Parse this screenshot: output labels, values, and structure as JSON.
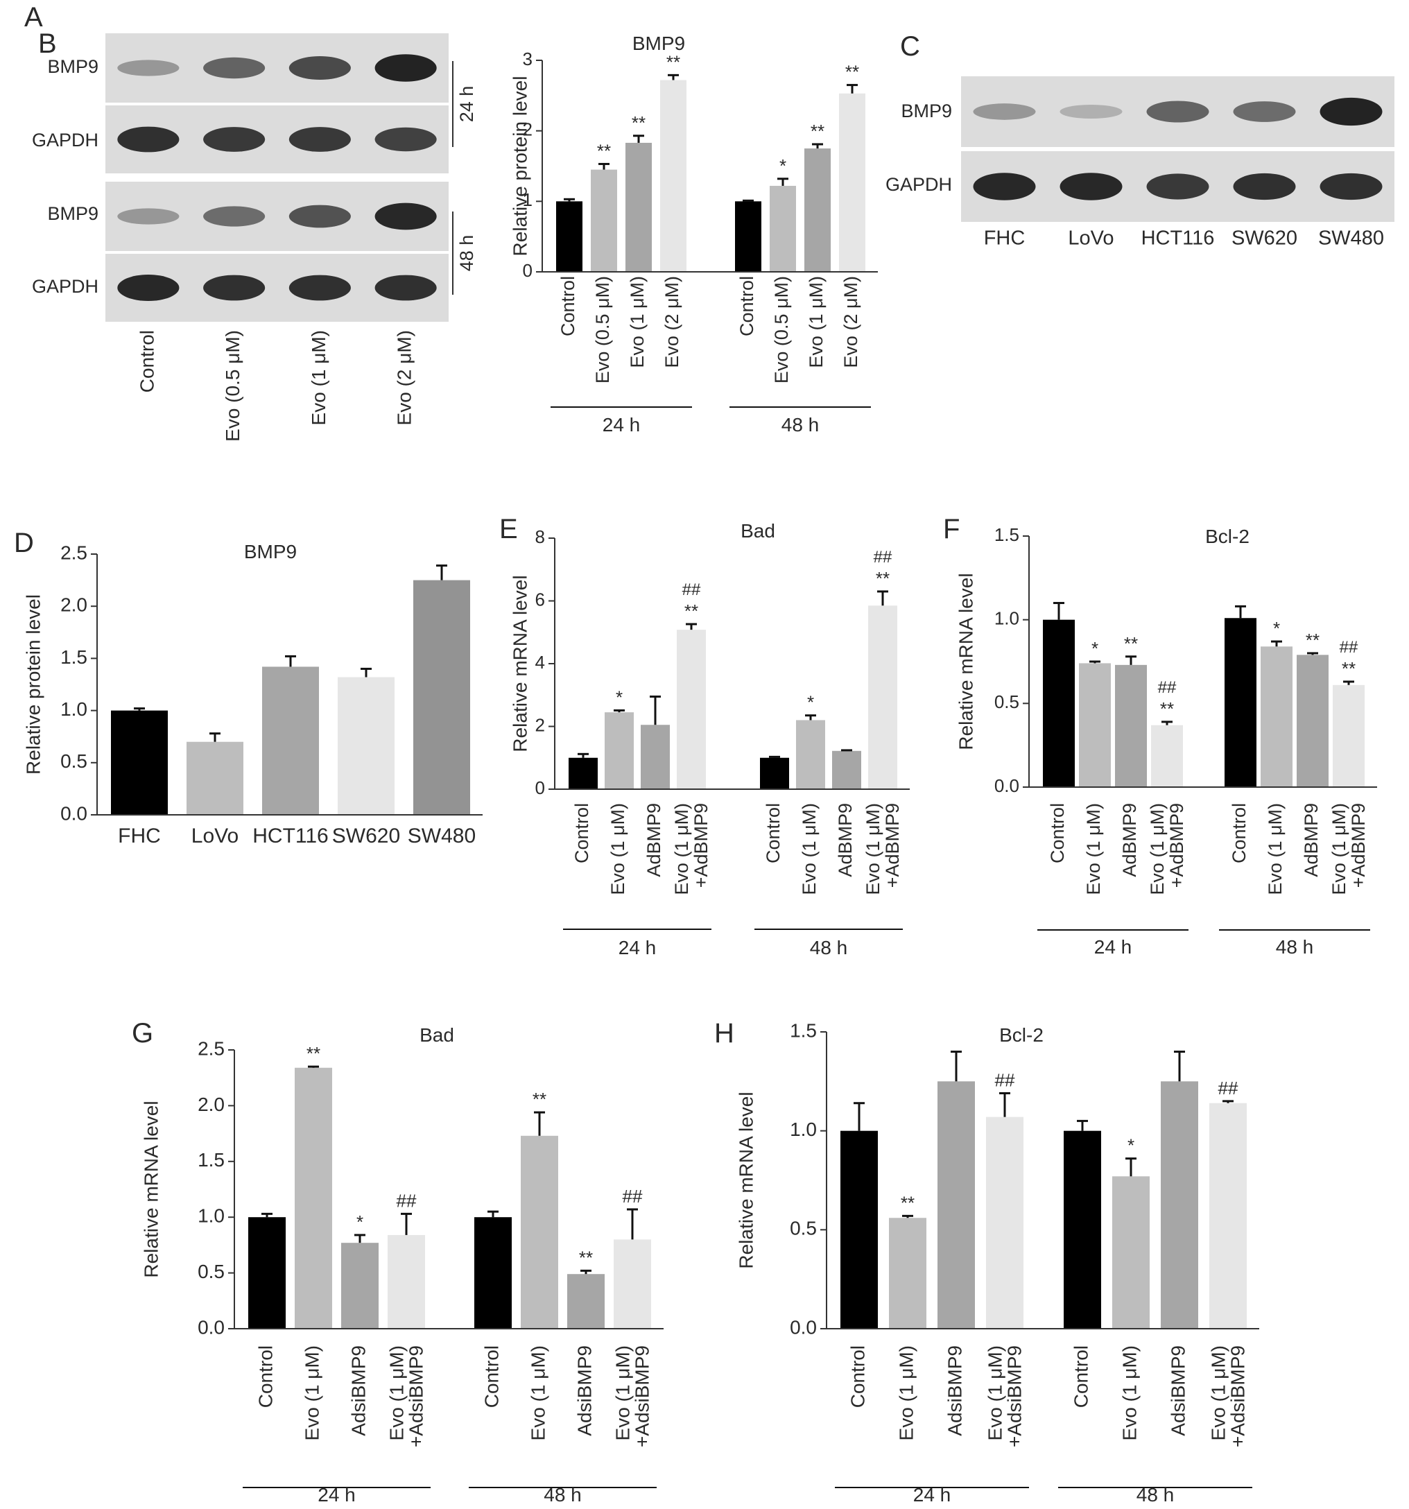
{
  "colors": {
    "black": "#000000",
    "light_gray": "#bdbdbd",
    "mid_gray": "#a6a6a6",
    "very_light": "#e6e6e6",
    "dark_gray": "#939393",
    "axis": "#333333",
    "blot_bg": "#dcdcdc"
  },
  "panelA": {
    "letter": "A",
    "rows_24h": [
      "BMP9",
      "GAPDH"
    ],
    "rows_48h": [
      "BMP9",
      "GAPDH"
    ],
    "label_24h": "24 h",
    "label_48h": "48 h",
    "lanes": [
      "Control",
      "Evo (0.5 μM)",
      "Evo (1 μM)",
      "Evo (2 μM)"
    ],
    "bmp9_24h_intensity": [
      0.3,
      0.6,
      0.75,
      0.98
    ],
    "gapdh_24h_intensity": [
      0.9,
      0.85,
      0.85,
      0.8
    ],
    "bmp9_48h_intensity": [
      0.3,
      0.55,
      0.7,
      0.95
    ],
    "gapdh_48h_intensity": [
      0.95,
      0.9,
      0.9,
      0.9
    ]
  },
  "panelC": {
    "letter": "C",
    "rows": [
      "BMP9",
      "GAPDH"
    ],
    "lanes": [
      "FHC",
      "LoVo",
      "HCT116",
      "SW620",
      "SW480"
    ],
    "bmp9_intensity": [
      0.3,
      0.15,
      0.6,
      0.55,
      0.98
    ],
    "gapdh_intensity": [
      0.95,
      0.95,
      0.85,
      0.9,
      0.9
    ]
  },
  "chart_data": [
    {
      "panel": "B",
      "type": "bar",
      "title": "BMP9",
      "ylabel": "Relative protein level",
      "ylim": [
        0,
        3
      ],
      "yticks": [
        "0",
        "1",
        "2",
        "3"
      ],
      "groups": [
        {
          "name": "24 h",
          "categories": [
            "Control",
            "Evo (0.5 μM)",
            "Evo (1 μM)",
            "Evo (2 μM)"
          ],
          "values": [
            1.0,
            1.45,
            1.83,
            2.72
          ],
          "errors": [
            0.03,
            0.08,
            0.1,
            0.07
          ],
          "annotations": [
            "",
            "**",
            "**",
            "**"
          ]
        },
        {
          "name": "48 h",
          "categories": [
            "Control",
            "Evo (0.5 μM)",
            "Evo (1 μM)",
            "Evo (2 μM)"
          ],
          "values": [
            1.0,
            1.22,
            1.75,
            2.53
          ],
          "errors": [
            0.01,
            0.1,
            0.06,
            0.12
          ],
          "annotations": [
            "",
            "*",
            "**",
            "**"
          ]
        }
      ]
    },
    {
      "panel": "D",
      "type": "bar",
      "title": "BMP9",
      "ylabel": "Relative protein level",
      "ylim": [
        0,
        2.5
      ],
      "yticks": [
        "0.0",
        "0.5",
        "1.0",
        "1.5",
        "2.0",
        "2.5"
      ],
      "groups": [
        {
          "name": "",
          "categories": [
            "FHC",
            "LoVo",
            "HCT116",
            "SW620",
            "SW480"
          ],
          "values": [
            1.0,
            0.7,
            1.42,
            1.32,
            2.25
          ],
          "errors": [
            0.02,
            0.08,
            0.1,
            0.08,
            0.14
          ],
          "annotations": [
            "",
            "",
            "",
            "",
            ""
          ]
        }
      ]
    },
    {
      "panel": "E",
      "type": "bar",
      "title": "Bad",
      "ylabel": "Relative mRNA level",
      "ylim": [
        0,
        8
      ],
      "yticks": [
        "0",
        "2",
        "4",
        "6",
        "8"
      ],
      "groups": [
        {
          "name": "24 h",
          "categories": [
            "Control",
            "Evo (1 μM)",
            "AdBMP9",
            "Evo (1 μM) +AdBMP9"
          ],
          "values": [
            1.0,
            2.45,
            2.05,
            5.08
          ],
          "errors": [
            0.12,
            0.06,
            0.9,
            0.18
          ],
          "annotations": [
            "",
            "*",
            "",
            "**"
          ],
          "annotations2": [
            "",
            "",
            "",
            "##"
          ]
        },
        {
          "name": "48 h",
          "categories": [
            "Control",
            "Evo (1 μM)",
            "AdBMP9",
            "Evo (1 μM) +AdBMP9"
          ],
          "values": [
            1.0,
            2.2,
            1.22,
            5.85
          ],
          "errors": [
            0.03,
            0.15,
            0.02,
            0.45
          ],
          "annotations": [
            "",
            "*",
            "",
            "**"
          ],
          "annotations2": [
            "",
            "",
            "",
            "##"
          ]
        }
      ]
    },
    {
      "panel": "F",
      "type": "bar",
      "title": "Bcl-2",
      "ylabel": "Relative mRNA level",
      "ylim": [
        0,
        1.5
      ],
      "yticks": [
        "0.0",
        "0.5",
        "1.0",
        "1.5"
      ],
      "groups": [
        {
          "name": "24 h",
          "categories": [
            "Control",
            "Evo (1 μM)",
            "AdBMP9",
            "Evo (1 μM) +AdBMP9"
          ],
          "values": [
            1.0,
            0.74,
            0.73,
            0.37
          ],
          "errors": [
            0.1,
            0.01,
            0.05,
            0.02
          ],
          "annotations": [
            "",
            "*",
            "**",
            "**"
          ],
          "annotations2": [
            "",
            "",
            "",
            "##"
          ]
        },
        {
          "name": "48 h",
          "categories": [
            "Control",
            "Evo (1 μM)",
            "AdBMP9",
            "Evo (1 μM) +AdBMP9"
          ],
          "values": [
            1.01,
            0.84,
            0.79,
            0.61
          ],
          "errors": [
            0.07,
            0.03,
            0.01,
            0.02
          ],
          "annotations": [
            "",
            "*",
            "**",
            "**"
          ],
          "annotations2": [
            "",
            "",
            "",
            "##"
          ]
        }
      ]
    },
    {
      "panel": "G",
      "type": "bar",
      "title": "Bad",
      "ylabel": "Relative mRNA level",
      "ylim": [
        0,
        2.5
      ],
      "yticks": [
        "0.0",
        "0.5",
        "1.0",
        "1.5",
        "2.0",
        "2.5"
      ],
      "groups": [
        {
          "name": "24 h",
          "categories": [
            "Control",
            "Evo (1 μM)",
            "AdsiBMP9",
            "Evo (1 μM) +AdsiBMP9"
          ],
          "values": [
            1.0,
            2.34,
            0.77,
            0.84
          ],
          "errors": [
            0.03,
            0.01,
            0.07,
            0.19
          ],
          "annotations": [
            "",
            "**",
            "*",
            "##"
          ]
        },
        {
          "name": "48 h",
          "categories": [
            "Control",
            "Evo (1 μM)",
            "AdsiBMP9",
            "Evo (1 μM) +AdsiBMP9"
          ],
          "values": [
            1.0,
            1.73,
            0.49,
            0.8
          ],
          "errors": [
            0.05,
            0.21,
            0.03,
            0.27
          ],
          "annotations": [
            "",
            "**",
            "**",
            "##"
          ]
        }
      ]
    },
    {
      "panel": "H",
      "type": "bar",
      "title": "Bcl-2",
      "ylabel": "Relative mRNA level",
      "ylim": [
        0,
        1.5
      ],
      "yticks": [
        "0.0",
        "0.5",
        "1.0",
        "1.5"
      ],
      "groups": [
        {
          "name": "24 h",
          "categories": [
            "Control",
            "Evo (1 μM)",
            "AdsiBMP9",
            "Evo (1 μM) +AdsiBMP9"
          ],
          "values": [
            1.0,
            0.56,
            1.25,
            1.07
          ],
          "errors": [
            0.14,
            0.01,
            0.15,
            0.12
          ],
          "annotations": [
            "",
            "**",
            "",
            "##"
          ]
        },
        {
          "name": "48 h",
          "categories": [
            "Control",
            "Evo (1 μM)",
            "AdsiBMP9",
            "Evo (1 μM) +AdsiBMP9"
          ],
          "values": [
            1.0,
            0.77,
            1.25,
            1.14
          ],
          "errors": [
            0.05,
            0.09,
            0.15,
            0.01
          ],
          "annotations": [
            "",
            "*",
            "",
            "##"
          ]
        }
      ]
    }
  ]
}
